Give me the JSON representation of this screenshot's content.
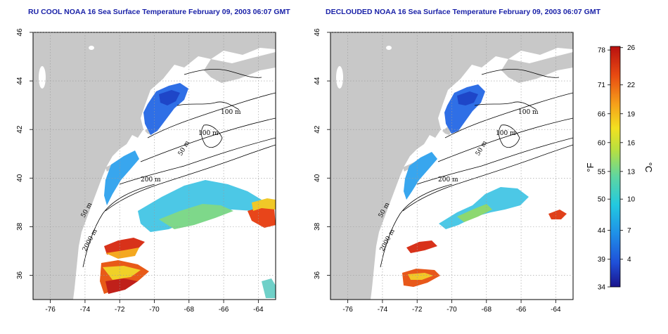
{
  "panels": [
    {
      "title": "RU COOL NOAA 16 Sea Surface Temperature February 09, 2003 06:07 GMT",
      "contour_labels": [
        "100 m",
        "100 m",
        "50 m",
        "200 m",
        "50 m",
        "2000 m"
      ]
    },
    {
      "title": "DECLOUDED NOAA 16 Sea Surface Temperature February 09, 2003 06:07 GMT",
      "contour_labels": [
        "100 m",
        "100 m",
        "50 m",
        "200 m",
        "50 m",
        "2000 m"
      ]
    }
  ],
  "map_axes": {
    "lon_ticks": [
      "-76",
      "-74",
      "-72",
      "-70",
      "-68",
      "-66",
      "-64"
    ],
    "lat_ticks": [
      "36",
      "38",
      "40",
      "42",
      "44",
      "46"
    ]
  },
  "colorbar": {
    "fahrenheit_unit": "°F",
    "celsius_unit": "°C",
    "fahrenheit_ticks": [
      "34",
      "39",
      "44",
      "50",
      "55",
      "60",
      "66",
      "71",
      "78"
    ],
    "celsius_ticks": [
      "4",
      "7",
      "10",
      "13",
      "16",
      "19",
      "22",
      "26"
    ],
    "colors": [
      "#1a148c",
      "#1f4fd8",
      "#1f8fe8",
      "#22c9e0",
      "#5fd6a0",
      "#b8e040",
      "#f2e020",
      "#f6a01a",
      "#e84a12",
      "#b81010"
    ]
  },
  "colors": {
    "land": "#c8c8c8",
    "title": "#1a22a8"
  }
}
